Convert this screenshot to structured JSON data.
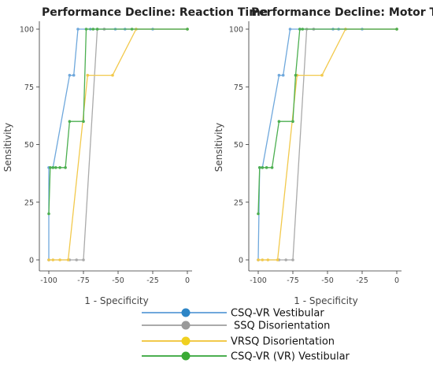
{
  "chart_data": [
    {
      "type": "line",
      "title": "Performance Decline: Reaction Time",
      "xlabel": "1 - Specificity",
      "ylabel": "Sensitivity",
      "xlim": [
        -100,
        0
      ],
      "ylim": [
        0,
        100
      ],
      "x_ticks": [
        "-100",
        "-75",
        "-50",
        "-25",
        "0"
      ],
      "y_ticks": [
        "0",
        "25",
        "50",
        "75",
        "100"
      ],
      "grid": false,
      "series": [
        {
          "name": "CSQ-VR Vestibular",
          "color": "#6fa8dc",
          "x": [
            -100,
            -100,
            -97,
            -85,
            -82,
            -79,
            -70,
            -60,
            -52,
            -45,
            -37,
            -25,
            0
          ],
          "y": [
            0,
            40,
            40,
            80,
            80,
            100,
            100,
            100,
            100,
            100,
            100,
            100,
            100
          ]
        },
        {
          "name": "SSQ Disorientation",
          "color": "#aaaaaa",
          "x": [
            -100,
            -85,
            -80,
            -75,
            -65,
            -60,
            0
          ],
          "y": [
            0,
            0,
            0,
            0,
            100,
            100,
            100
          ]
        },
        {
          "name": "VRSQ Disorientation",
          "color": "#f2c94c",
          "x": [
            -100,
            -97,
            -92,
            -86,
            -72,
            -54,
            -37,
            0
          ],
          "y": [
            0,
            0,
            0,
            0,
            80,
            80,
            100,
            100
          ]
        },
        {
          "name": "CSQ-VR (VR) Vestibular",
          "color": "#4caf50",
          "x": [
            -100,
            -99,
            -97,
            -95,
            -92,
            -88,
            -85,
            -75,
            -73,
            -68,
            -65,
            -40,
            0
          ],
          "y": [
            20,
            40,
            40,
            40,
            40,
            40,
            60,
            60,
            100,
            100,
            100,
            100,
            100
          ]
        }
      ]
    },
    {
      "type": "line",
      "title": "Performance Decline: Motor Time",
      "xlabel": "1 - Specificity",
      "ylabel": "Sensitivity",
      "xlim": [
        -100,
        0
      ],
      "ylim": [
        0,
        100
      ],
      "x_ticks": [
        "-100",
        "-75",
        "-50",
        "-25",
        "0"
      ],
      "y_ticks": [
        "0",
        "25",
        "50",
        "75",
        "100"
      ],
      "grid": false,
      "series": [
        {
          "name": "CSQ-VR Vestibular",
          "color": "#6fa8dc",
          "x": [
            -100,
            -99,
            -97,
            -85,
            -82,
            -77,
            -70,
            -60,
            -46,
            -42,
            -37,
            -25,
            0
          ],
          "y": [
            0,
            40,
            40,
            80,
            80,
            100,
            100,
            100,
            100,
            100,
            100,
            100,
            100
          ]
        },
        {
          "name": "SSQ Disorientation",
          "color": "#aaaaaa",
          "x": [
            -100,
            -85,
            -80,
            -75,
            -65,
            -60,
            0
          ],
          "y": [
            0,
            0,
            0,
            0,
            100,
            100,
            100
          ]
        },
        {
          "name": "VRSQ Disorientation",
          "color": "#f2c94c",
          "x": [
            -100,
            -97,
            -93,
            -86,
            -72,
            -54,
            -37,
            0
          ],
          "y": [
            0,
            0,
            0,
            0,
            80,
            80,
            100,
            100
          ]
        },
        {
          "name": "CSQ-VR (VR) Vestibular",
          "color": "#4caf50",
          "x": [
            -100,
            -99,
            -97,
            -94,
            -90,
            -85,
            -75,
            -73,
            -70,
            -68,
            0
          ],
          "y": [
            20,
            40,
            40,
            40,
            40,
            60,
            60,
            80,
            100,
            100,
            100
          ]
        }
      ]
    }
  ],
  "legend": {
    "placement": "bottom",
    "items": [
      {
        "label": "CSQ-VR Vestibular",
        "color": "#6fa8dc",
        "marker_color": "#2d85c6"
      },
      {
        "label": "SSQ Disorientation",
        "color": "#aaaaaa",
        "marker_color": "#9a9a9a"
      },
      {
        "label": "VRSQ Disorientation",
        "color": "#f2c94c",
        "marker_color": "#f0d020"
      },
      {
        "label": "CSQ-VR (VR) Vestibular",
        "color": "#4caf50",
        "marker_color": "#3aaa35"
      }
    ]
  }
}
